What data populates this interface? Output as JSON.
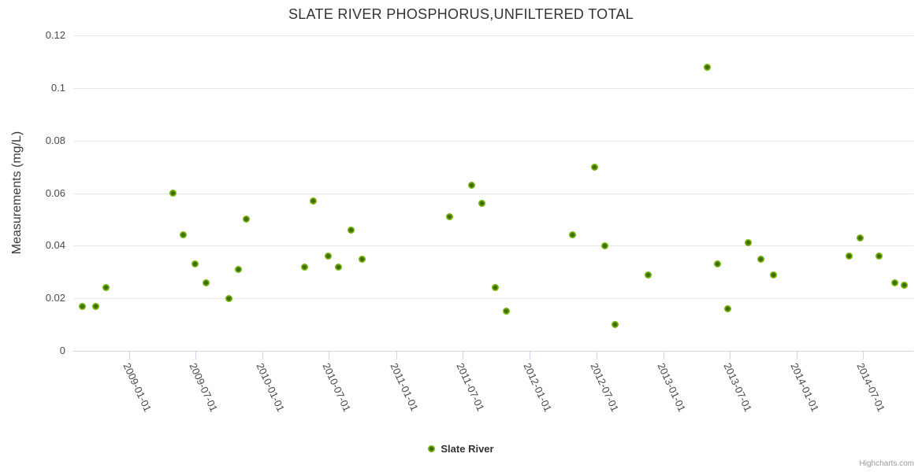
{
  "credit": "Highcharts.com",
  "colors": {
    "marker_outer": "#76b30e",
    "marker_inner": "#3e6b04",
    "gridline": "#e6e6e6",
    "axis_line": "#ccd6eb",
    "title_text": "#333333",
    "label_text": "#4a4a4a",
    "credit_text": "#999999"
  },
  "chart_data": {
    "type": "scatter",
    "title": "SLATE RIVER PHOSPHORUS,UNFILTERED TOTAL",
    "xlabel": "",
    "ylabel": "Measurements (mg/L)",
    "ylim": [
      0,
      0.12
    ],
    "y_ticks": [
      0,
      0.02,
      0.04,
      0.06,
      0.08,
      0.1,
      0.12
    ],
    "y_tick_labels": [
      "0",
      "0.02",
      "0.04",
      "0.06",
      "0.08",
      "0.1",
      "0.12"
    ],
    "x_range": [
      "2008-08-01",
      "2014-11-15"
    ],
    "x_tick_labels": [
      "2009-01-01",
      "2009-07-01",
      "2010-01-01",
      "2010-07-01",
      "2011-01-01",
      "2011-07-01",
      "2012-01-01",
      "2012-07-01",
      "2013-01-01",
      "2013-07-01",
      "2014-01-01",
      "2014-07-01"
    ],
    "grid": true,
    "legend_position": "bottom-center",
    "series": [
      {
        "name": "Slate River",
        "color": "#76b30e",
        "points": [
          [
            "2008-08-25",
            0.017
          ],
          [
            "2008-10-01",
            0.017
          ],
          [
            "2008-10-29",
            0.024
          ],
          [
            "2009-04-30",
            0.06
          ],
          [
            "2009-05-28",
            0.044
          ],
          [
            "2009-06-30",
            0.033
          ],
          [
            "2009-07-31",
            0.026
          ],
          [
            "2009-09-30",
            0.02
          ],
          [
            "2009-10-26",
            0.031
          ],
          [
            "2009-11-17",
            0.05
          ],
          [
            "2010-04-25",
            0.032
          ],
          [
            "2010-05-20",
            0.057
          ],
          [
            "2010-06-29",
            0.036
          ],
          [
            "2010-07-28",
            0.032
          ],
          [
            "2010-08-31",
            0.046
          ],
          [
            "2010-09-29",
            0.035
          ],
          [
            "2011-05-27",
            0.051
          ],
          [
            "2011-07-26",
            0.063
          ],
          [
            "2011-08-23",
            0.056
          ],
          [
            "2011-09-29",
            0.024
          ],
          [
            "2011-10-30",
            0.015
          ],
          [
            "2012-04-26",
            0.044
          ],
          [
            "2012-06-27",
            0.07
          ],
          [
            "2012-07-24",
            0.04
          ],
          [
            "2012-08-21",
            0.01
          ],
          [
            "2012-11-20",
            0.029
          ],
          [
            "2013-05-01",
            0.108
          ],
          [
            "2013-05-29",
            0.033
          ],
          [
            "2013-06-26",
            0.016
          ],
          [
            "2013-08-21",
            0.041
          ],
          [
            "2013-09-24",
            0.035
          ],
          [
            "2013-10-29",
            0.029
          ],
          [
            "2014-05-24",
            0.036
          ],
          [
            "2014-06-23",
            0.043
          ],
          [
            "2014-08-13",
            0.036
          ],
          [
            "2014-09-25",
            0.026
          ],
          [
            "2014-10-21",
            0.025
          ]
        ]
      }
    ]
  }
}
